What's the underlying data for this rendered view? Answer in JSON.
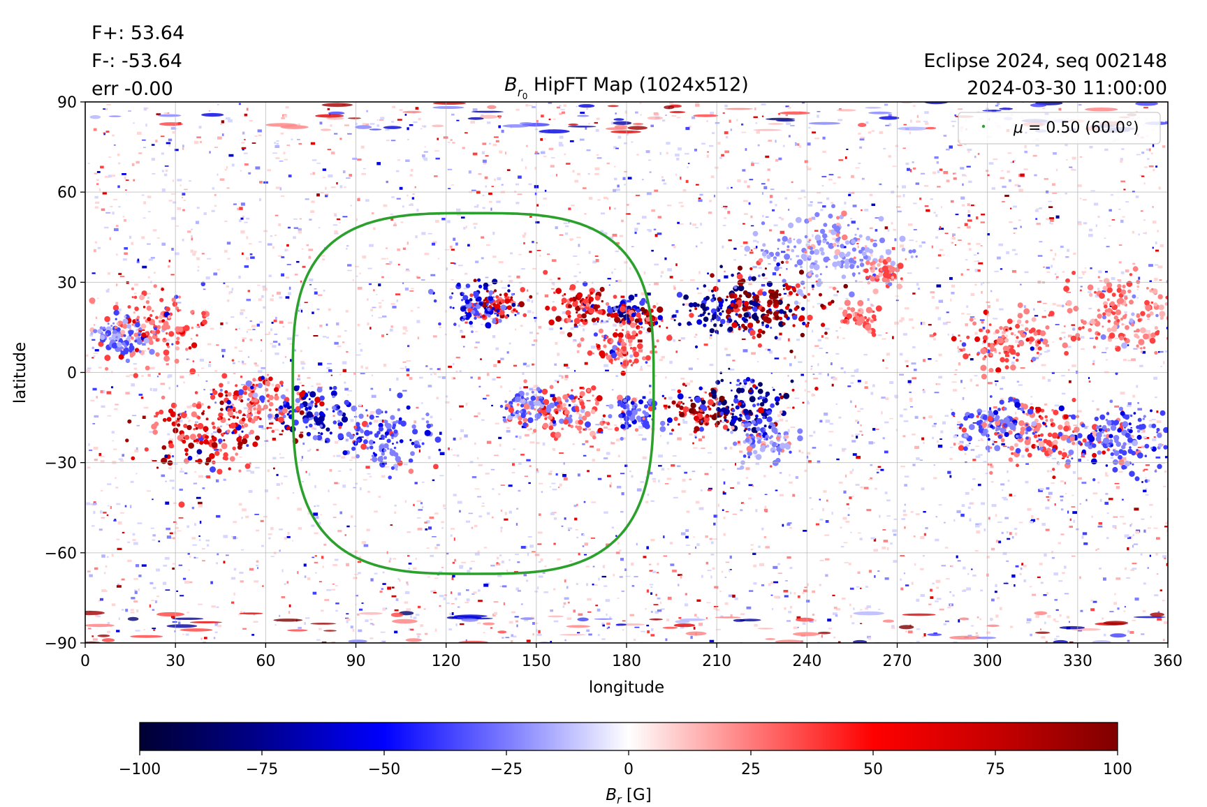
{
  "header": {
    "flux_pos": "F+: 53.64",
    "flux_neg": "F-: -53.64",
    "err": "err -0.00",
    "title_sym": "B",
    "title_sub": "r",
    "title_subsub": "0",
    "title_rest": " HipFT Map (1024x512)",
    "right_line1": "Eclipse 2024, seq 002148",
    "right_line2": "2024-03-30 11:00:00"
  },
  "legend": {
    "marker_color": "#2ca02c",
    "label_mu": "μ",
    "label_rest": " = 0.50 (60.0°)"
  },
  "colorbar": {
    "label_sym": "B",
    "label_sub": "r",
    "label_unit": " [G]",
    "range": [
      -100,
      100
    ],
    "ticks": [
      "−100",
      "−75",
      "−50",
      "−25",
      "0",
      "25",
      "50",
      "75",
      "100"
    ],
    "stops": [
      [
        "0",
        "#000033"
      ],
      [
        "0.12",
        "#00008a"
      ],
      [
        "0.25",
        "#0000ff"
      ],
      [
        "0.38",
        "#8080ff"
      ],
      [
        "0.5",
        "#ffffff"
      ],
      [
        "0.62",
        "#ff8080"
      ],
      [
        "0.75",
        "#ff0000"
      ],
      [
        "0.88",
        "#c40000"
      ],
      [
        "1",
        "#800000"
      ]
    ]
  },
  "chart_data": {
    "type": "heatmap",
    "title": "Br0 HipFT Map (1024x512)",
    "xlabel": "longitude",
    "ylabel": "latitude",
    "xlim": [
      0,
      360
    ],
    "ylim": [
      -90,
      90
    ],
    "xticks": [
      0,
      30,
      60,
      90,
      120,
      150,
      180,
      210,
      240,
      270,
      300,
      330,
      360
    ],
    "yticks": [
      -90,
      -60,
      -30,
      0,
      30,
      60,
      90
    ],
    "grid": true,
    "legend_position": "top-right",
    "mu_contour": {
      "label": "μ = 0.50 (60.0°)",
      "color": "#2ca02c",
      "center": [
        129,
        -4
      ],
      "lon_range": [
        69,
        189
      ],
      "lat_range": [
        -67,
        53
      ]
    },
    "active_regions": [
      {
        "lon": 214,
        "lat": 21,
        "polarity": "negative",
        "strength": 1.0,
        "size": 14
      },
      {
        "lon": 227,
        "lat": 22,
        "polarity": "positive",
        "strength": 1.0,
        "size": 16
      },
      {
        "lon": 205,
        "lat": -12,
        "polarity": "positive",
        "strength": 1.0,
        "size": 10
      },
      {
        "lon": 220,
        "lat": -11,
        "polarity": "negative",
        "strength": 1.0,
        "size": 14
      },
      {
        "lon": 181,
        "lat": 20,
        "polarity": "negative",
        "strength": 0.9,
        "size": 6
      },
      {
        "lon": 185,
        "lat": 18,
        "polarity": "positive",
        "strength": 0.9,
        "size": 6
      },
      {
        "lon": 166,
        "lat": 22,
        "polarity": "positive",
        "strength": 0.8,
        "size": 10
      },
      {
        "lon": 137,
        "lat": 22,
        "polarity": "positive",
        "strength": 0.8,
        "size": 8
      },
      {
        "lon": 130,
        "lat": 22,
        "polarity": "negative",
        "strength": 0.7,
        "size": 10
      },
      {
        "lon": 178,
        "lat": 8,
        "polarity": "positive",
        "strength": 0.6,
        "size": 10
      },
      {
        "lon": 40,
        "lat": -20,
        "polarity": "positive",
        "strength": 0.8,
        "size": 18
      },
      {
        "lon": 55,
        "lat": -10,
        "polarity": "positive",
        "strength": 0.6,
        "size": 12
      },
      {
        "lon": 75,
        "lat": -13,
        "polarity": "negative",
        "strength": 0.8,
        "size": 12
      },
      {
        "lon": 100,
        "lat": -22,
        "polarity": "negative",
        "strength": 0.6,
        "size": 14
      },
      {
        "lon": 25,
        "lat": 15,
        "polarity": "positive",
        "strength": 0.6,
        "size": 16
      },
      {
        "lon": 12,
        "lat": 12,
        "polarity": "negative",
        "strength": 0.5,
        "size": 10
      },
      {
        "lon": 160,
        "lat": -13,
        "polarity": "positive",
        "strength": 0.6,
        "size": 14
      },
      {
        "lon": 146,
        "lat": -11,
        "polarity": "negative",
        "strength": 0.5,
        "size": 8
      },
      {
        "lon": 183,
        "lat": -14,
        "polarity": "negative",
        "strength": 0.6,
        "size": 8
      },
      {
        "lon": 308,
        "lat": 10,
        "polarity": "positive",
        "strength": 0.6,
        "size": 14
      },
      {
        "lon": 318,
        "lat": -20,
        "polarity": "positive",
        "strength": 0.6,
        "size": 16
      },
      {
        "lon": 303,
        "lat": -18,
        "polarity": "negative",
        "strength": 0.6,
        "size": 12
      },
      {
        "lon": 345,
        "lat": -22,
        "polarity": "negative",
        "strength": 0.6,
        "size": 16
      },
      {
        "lon": 345,
        "lat": 20,
        "polarity": "positive",
        "strength": 0.5,
        "size": 18
      },
      {
        "lon": 258,
        "lat": 18,
        "polarity": "positive",
        "strength": 0.5,
        "size": 6
      },
      {
        "lon": 248,
        "lat": 40,
        "polarity": "negative",
        "strength": 0.4,
        "size": 20
      },
      {
        "lon": 265,
        "lat": 33,
        "polarity": "positive",
        "strength": 0.5,
        "size": 6
      },
      {
        "lon": 226,
        "lat": -22,
        "polarity": "negative",
        "strength": 0.5,
        "size": 10
      }
    ]
  }
}
